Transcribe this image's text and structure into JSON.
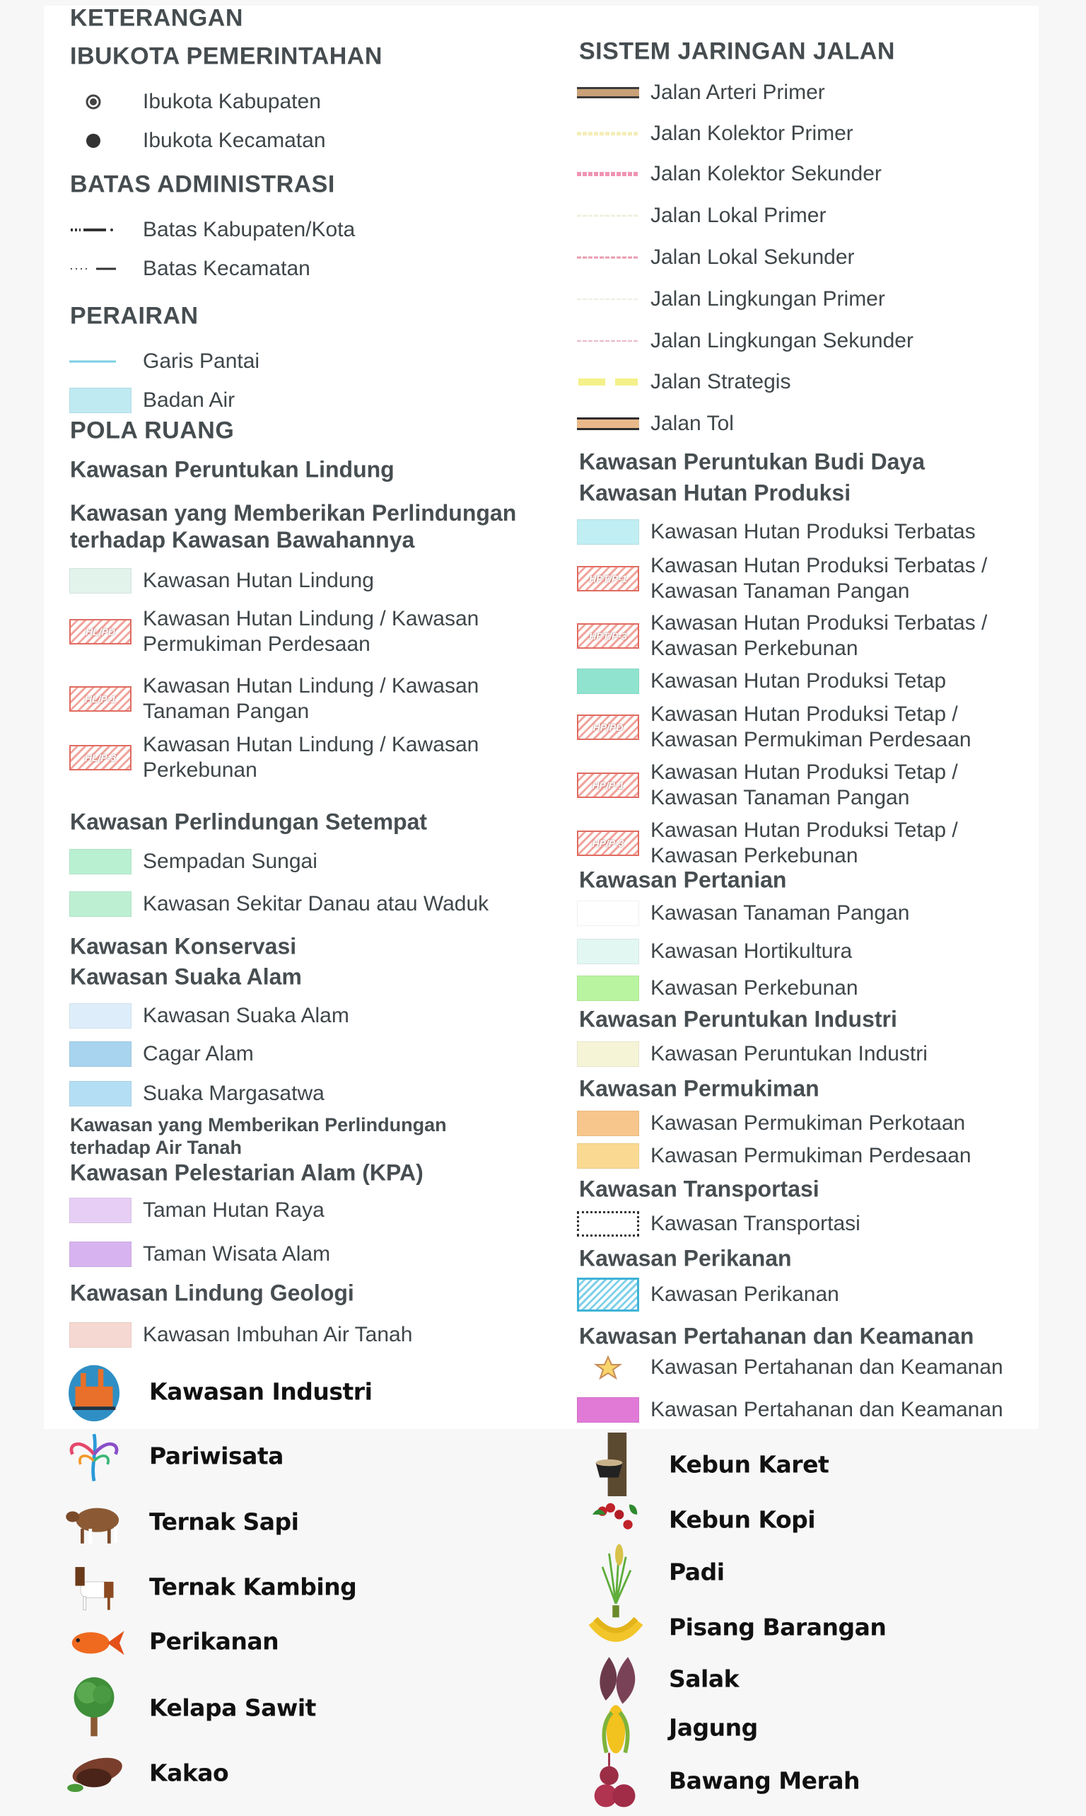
{
  "left": [
    {
      "kind": "h1",
      "lines": [
        "KETERANGAN"
      ]
    },
    {
      "kind": "h1",
      "lines": [
        "IBUKOTA PEMERINTAHAN"
      ]
    },
    {
      "kind": "item",
      "sym": "ring",
      "lines": [
        "Ibukota Kabupaten"
      ]
    },
    {
      "kind": "item",
      "sym": "dot",
      "lines": [
        "Ibukota Kecamatan"
      ]
    },
    {
      "kind": "h1",
      "lines": [
        "BATAS ADMINISTRASI"
      ]
    },
    {
      "kind": "item",
      "sym": "dashdot",
      "lines": [
        "Batas Kabupaten/Kota"
      ]
    },
    {
      "kind": "item",
      "sym": "dotdash",
      "lines": [
        "Batas Kecamatan"
      ]
    },
    {
      "kind": "h1",
      "lines": [
        "PERAIRAN"
      ]
    },
    {
      "kind": "item",
      "sym": "coast",
      "lines": [
        "Garis Pantai"
      ]
    },
    {
      "kind": "item",
      "sym": "swatch",
      "color": "#bfeaf2",
      "lines": [
        "Badan Air"
      ]
    },
    {
      "kind": "h1",
      "lines": [
        "POLA RUANG"
      ]
    },
    {
      "kind": "h2",
      "lines": [
        "Kawasan Peruntukan Lindung"
      ]
    },
    {
      "kind": "h2",
      "lines": [
        "Kawasan yang Memberikan Perlindungan",
        "terhadap Kawasan Bawahannya"
      ]
    },
    {
      "kind": "item",
      "sym": "swatch",
      "color": "#e2f3ec",
      "lines": [
        "Kawasan Hutan Lindung"
      ]
    },
    {
      "kind": "item",
      "sym": "hatch",
      "code": "HL/PD",
      "lines": [
        "Kawasan Hutan Lindung / Kawasan",
        "Permukiman Perdesaan"
      ]
    },
    {
      "kind": "item",
      "sym": "hatch",
      "code": "HL/P-1",
      "lines": [
        "Kawasan Hutan Lindung / Kawasan",
        "Tanaman Pangan"
      ]
    },
    {
      "kind": "item",
      "sym": "hatch",
      "code": "HL/P-3",
      "lines": [
        "Kawasan Hutan Lindung / Kawasan",
        "Perkebunan"
      ]
    },
    {
      "kind": "h2",
      "lines": [
        "Kawasan Perlindungan Setempat"
      ]
    },
    {
      "kind": "item",
      "sym": "swatch",
      "color": "#b9f0d2",
      "lines": [
        "Sempadan Sungai"
      ]
    },
    {
      "kind": "item",
      "sym": "swatch",
      "color": "#bdf0d3",
      "lines": [
        "Kawasan Sekitar Danau atau Waduk"
      ]
    },
    {
      "kind": "h2",
      "lines": [
        "Kawasan Konservasi"
      ]
    },
    {
      "kind": "h2",
      "lines": [
        "Kawasan Suaka Alam"
      ]
    },
    {
      "kind": "item",
      "sym": "swatch",
      "color": "#ddeefa",
      "lines": [
        "Kawasan Suaka Alam"
      ]
    },
    {
      "kind": "item",
      "sym": "swatch",
      "color": "#a8d4ef",
      "lines": [
        "Cagar Alam"
      ]
    },
    {
      "kind": "item",
      "sym": "swatch",
      "color": "#b4def3",
      "lines": [
        "Suaka Margasatwa"
      ]
    },
    {
      "kind": "h3",
      "lines": [
        "Kawasan yang Memberikan Perlindungan",
        "terhadap Air Tanah"
      ]
    },
    {
      "kind": "h2",
      "lines": [
        "Kawasan Pelestarian Alam (KPA)"
      ]
    },
    {
      "kind": "item",
      "sym": "swatch",
      "color": "#e6cef4",
      "lines": [
        "Taman Hutan Raya"
      ]
    },
    {
      "kind": "item",
      "sym": "swatch",
      "color": "#d7b4ef",
      "lines": [
        "Taman Wisata Alam"
      ]
    },
    {
      "kind": "h2",
      "lines": [
        "Kawasan Lindung Geologi"
      ]
    },
    {
      "kind": "item",
      "sym": "swatch",
      "color": "#f6d8d2",
      "lines": [
        "Kawasan Imbuhan Air Tanah"
      ]
    }
  ],
  "right": [
    {
      "kind": "h1",
      "lines": [
        "SISTEM JARINGAN JALAN"
      ]
    },
    {
      "kind": "item",
      "sym": "road-arteri",
      "lines": [
        "Jalan Arteri Primer"
      ]
    },
    {
      "kind": "item",
      "sym": "road-kolektor-primer",
      "lines": [
        "Jalan Kolektor Primer"
      ]
    },
    {
      "kind": "item",
      "sym": "road-kolektor-sekunder",
      "lines": [
        "Jalan Kolektor Sekunder"
      ]
    },
    {
      "kind": "item",
      "sym": "road-lokal-primer",
      "lines": [
        "Jalan Lokal Primer"
      ]
    },
    {
      "kind": "item",
      "sym": "road-lokal-sekunder",
      "lines": [
        "Jalan Lokal Sekunder"
      ]
    },
    {
      "kind": "item",
      "sym": "road-lingkungan-primer",
      "lines": [
        "Jalan Lingkungan Primer"
      ]
    },
    {
      "kind": "item",
      "sym": "road-lingkungan-sekunder",
      "lines": [
        "Jalan Lingkungan Sekunder"
      ]
    },
    {
      "kind": "item",
      "sym": "road-strategis",
      "lines": [
        "Jalan Strategis"
      ]
    },
    {
      "kind": "item",
      "sym": "road-tol",
      "lines": [
        "Jalan Tol"
      ]
    },
    {
      "kind": "h2",
      "lines": [
        "Kawasan Peruntukan Budi Daya"
      ]
    },
    {
      "kind": "h2",
      "lines": [
        "Kawasan Hutan Produksi"
      ]
    },
    {
      "kind": "item",
      "sym": "swatch",
      "color": "#c0eef3",
      "lines": [
        "Kawasan Hutan Produksi Terbatas"
      ]
    },
    {
      "kind": "item",
      "sym": "hatch",
      "code": "HPT/P-1",
      "lines": [
        "Kawasan Hutan Produksi Terbatas /",
        "Kawasan Tanaman Pangan"
      ]
    },
    {
      "kind": "item",
      "sym": "hatch",
      "code": "HPT/P-3",
      "lines": [
        "Kawasan Hutan Produksi Terbatas /",
        "Kawasan Perkebunan"
      ]
    },
    {
      "kind": "item",
      "sym": "swatch",
      "color": "#8fe3cf",
      "lines": [
        "Kawasan Hutan Produksi Tetap"
      ]
    },
    {
      "kind": "item",
      "sym": "hatch",
      "code": "HP/PD",
      "lines": [
        "Kawasan Hutan Produksi Tetap /",
        "Kawasan Permukiman Perdesaan"
      ]
    },
    {
      "kind": "item",
      "sym": "hatch",
      "code": "HP/P-1",
      "lines": [
        "Kawasan Hutan Produksi Tetap /",
        "Kawasan Tanaman Pangan"
      ]
    },
    {
      "kind": "item",
      "sym": "hatch",
      "code": "HP/P-3",
      "lines": [
        "Kawasan Hutan Produksi Tetap /",
        "Kawasan Perkebunan"
      ]
    },
    {
      "kind": "h2",
      "lines": [
        "Kawasan Pertanian"
      ]
    },
    {
      "kind": "item",
      "sym": "swatch",
      "color": "#ffffff",
      "lines": [
        "Kawasan Tanaman Pangan"
      ]
    },
    {
      "kind": "item",
      "sym": "swatch",
      "color": "#e2f7f2",
      "lines": [
        "Kawasan Hortikultura"
      ]
    },
    {
      "kind": "item",
      "sym": "swatch",
      "color": "#b9f4a0",
      "lines": [
        "Kawasan Perkebunan"
      ]
    },
    {
      "kind": "h2",
      "lines": [
        "Kawasan Peruntukan Industri"
      ]
    },
    {
      "kind": "item",
      "sym": "swatch",
      "color": "#f6f4d6",
      "lines": [
        "Kawasan Peruntukan Industri"
      ]
    },
    {
      "kind": "h2",
      "lines": [
        "Kawasan Permukiman"
      ]
    },
    {
      "kind": "item",
      "sym": "swatch",
      "color": "#f7c68c",
      "lines": [
        "Kawasan Permukiman Perkotaan"
      ]
    },
    {
      "kind": "item",
      "sym": "swatch",
      "color": "#fad992",
      "lines": [
        "Kawasan Permukiman Perdesaan"
      ]
    },
    {
      "kind": "h2",
      "lines": [
        "Kawasan Transportasi"
      ]
    },
    {
      "kind": "item",
      "sym": "dotbox",
      "lines": [
        "Kawasan Transportasi"
      ]
    },
    {
      "kind": "h2",
      "lines": [
        "Kawasan Perikanan"
      ]
    },
    {
      "kind": "item",
      "sym": "hatchblue",
      "lines": [
        "Kawasan Perikanan"
      ]
    },
    {
      "kind": "h2",
      "lines": [
        "Kawasan Pertahanan dan Keamanan"
      ]
    },
    {
      "kind": "item",
      "sym": "star",
      "lines": [
        "Kawasan Pertahanan dan Keamanan"
      ]
    },
    {
      "kind": "item",
      "sym": "swatch",
      "color": "#e07ad6",
      "lines": [
        "Kawasan Pertahanan dan Keamanan"
      ]
    }
  ],
  "icons_left": [
    {
      "icon": "factory-icon",
      "label": "Kawasan Industri"
    },
    {
      "icon": "tourism-logo-icon",
      "label": "Pariwisata"
    },
    {
      "icon": "cow-icon",
      "label": "Ternak Sapi"
    },
    {
      "icon": "goat-icon",
      "label": "Ternak Kambing"
    },
    {
      "icon": "fish-icon",
      "label": "Perikanan"
    },
    {
      "icon": "palm-tree-icon",
      "label": "Kelapa Sawit"
    },
    {
      "icon": "cocoa-icon",
      "label": "Kakao"
    }
  ],
  "icons_right": [
    {
      "icon": "rubber-tree-icon",
      "label": "Kebun Karet"
    },
    {
      "icon": "coffee-icon",
      "label": "Kebun Kopi"
    },
    {
      "icon": "rice-icon",
      "label": "Padi"
    },
    {
      "icon": "banana-icon",
      "label": "Pisang Barangan"
    },
    {
      "icon": "salak-icon",
      "label": "Salak"
    },
    {
      "icon": "corn-icon",
      "label": "Jagung"
    },
    {
      "icon": "shallot-icon",
      "label": "Bawang Merah"
    }
  ]
}
